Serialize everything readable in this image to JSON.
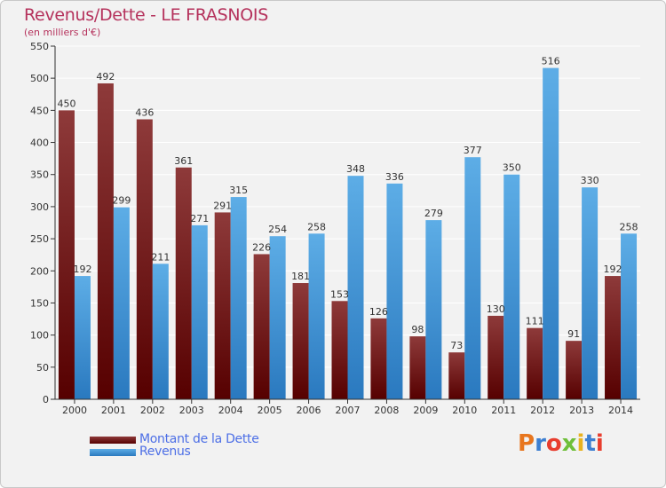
{
  "title": "Revenus/Dette - LE FRASNOIS",
  "subtitle": "(en milliers d'€)",
  "logo_text": "Proxiti",
  "colors": {
    "dette_dark": "#560000",
    "dette_light": "#8e3a3a",
    "revenus_dark": "#2a79bf",
    "revenus_light": "#5dade6",
    "grid": "#ffffff",
    "axis": "#333333",
    "legend_text": "#4d6fe6",
    "title": "#b5325c"
  },
  "chart_data": {
    "type": "bar",
    "title": "Revenus/Dette - LE FRASNOIS",
    "subtitle": "(en milliers d'€)",
    "xlabel": "",
    "ylabel": "",
    "ylim": [
      0,
      550
    ],
    "yticks": [
      0,
      50,
      100,
      150,
      200,
      250,
      300,
      350,
      400,
      450,
      500,
      550
    ],
    "grid": true,
    "legend_position": "bottom-left",
    "categories": [
      "2000",
      "2001",
      "2002",
      "2003",
      "2004",
      "2005",
      "2006",
      "2007",
      "2008",
      "2009",
      "2010",
      "2011",
      "2012",
      "2013",
      "2014"
    ],
    "series": [
      {
        "name": "Montant de la Dette",
        "values": [
          450,
          492,
          436,
          361,
          291,
          226,
          181,
          153,
          126,
          98,
          73,
          130,
          111,
          91,
          192
        ]
      },
      {
        "name": "Revenus",
        "values": [
          192,
          299,
          211,
          271,
          315,
          254,
          258,
          348,
          336,
          279,
          377,
          350,
          516,
          330,
          258
        ]
      }
    ]
  }
}
